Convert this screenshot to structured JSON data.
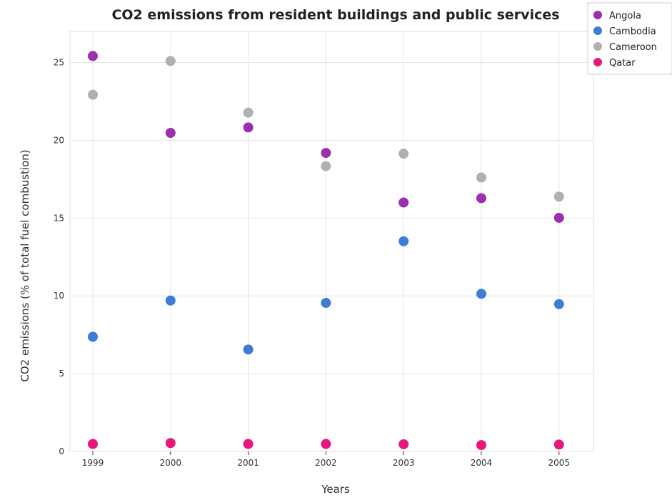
{
  "chart_data": {
    "type": "scatter",
    "title": "CO2 emissions from resident buildings and public services",
    "xlabel": "Years",
    "ylabel": "CO2 emissions (% of total fuel combustion)",
    "x": [
      "1999",
      "2000",
      "2001",
      "2002",
      "2003",
      "2004",
      "2005"
    ],
    "ylim": [
      0,
      27
    ],
    "yticks": [
      0,
      5,
      10,
      15,
      20,
      25
    ],
    "grid": true,
    "legend_position": "top-right",
    "series": [
      {
        "name": "Angola",
        "color": "#9b2fae",
        "values": [
          25.42,
          20.48,
          20.83,
          19.19,
          16.0,
          16.28,
          15.02
        ]
      },
      {
        "name": "Cambodia",
        "color": "#3b7dd8",
        "values": [
          7.37,
          9.7,
          6.55,
          9.55,
          13.51,
          10.13,
          9.47
        ]
      },
      {
        "name": "Cameroon",
        "color": "#b0b0b0",
        "values": [
          22.93,
          25.1,
          21.78,
          18.34,
          19.14,
          17.61,
          16.38
        ]
      },
      {
        "name": "Qatar",
        "color": "#e8177d",
        "values": [
          0.48,
          0.54,
          0.48,
          0.48,
          0.46,
          0.41,
          0.44
        ]
      }
    ]
  }
}
